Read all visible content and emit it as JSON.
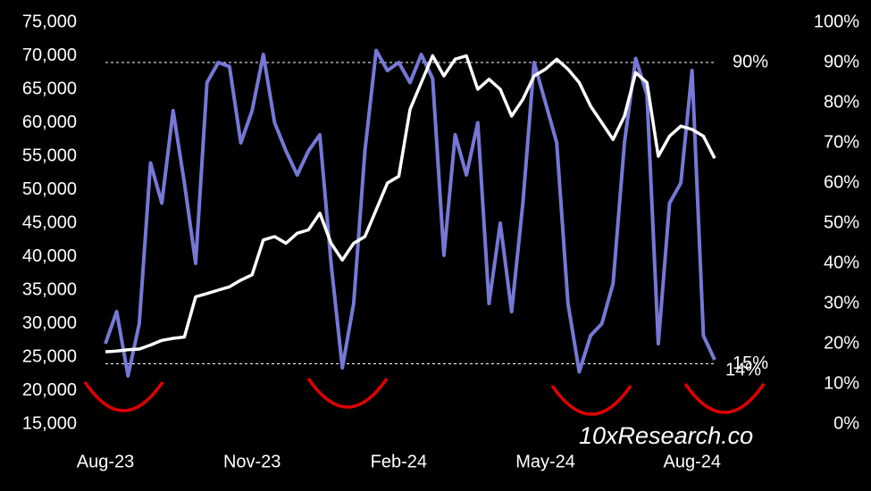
{
  "chart_data": {
    "type": "line",
    "categories": [
      "Aug-23",
      null,
      null,
      null,
      null,
      null,
      null,
      null,
      null,
      null,
      null,
      null,
      null,
      "Nov-23",
      null,
      null,
      null,
      null,
      null,
      null,
      null,
      null,
      null,
      null,
      null,
      null,
      "Feb-24",
      null,
      null,
      null,
      null,
      null,
      null,
      null,
      null,
      null,
      null,
      null,
      null,
      "May-24",
      null,
      null,
      null,
      null,
      null,
      null,
      null,
      null,
      null,
      null,
      null,
      null,
      "Aug-24",
      null,
      null
    ],
    "series": [
      {
        "color": "#ffffff",
        "axis": "y",
        "values": [
          25800,
          25900,
          26100,
          26200,
          26800,
          27500,
          27800,
          28000,
          34000,
          34500,
          35000,
          35500,
          36500,
          37300,
          42500,
          43000,
          42000,
          43500,
          44000,
          46500,
          42000,
          39500,
          42000,
          43000,
          47000,
          51000,
          52000,
          62000,
          66000,
          70000,
          67000,
          69500,
          70000,
          65000,
          66500,
          65000,
          61000,
          63500,
          67000,
          68000,
          69500,
          68000,
          66000,
          62500,
          60000,
          57500,
          61000,
          67500,
          66000,
          55000,
          58000,
          59500,
          59000,
          58000,
          54700
        ]
      },
      {
        "color": "#7678d6",
        "axis": "y2",
        "values": [
          20,
          28,
          12,
          25,
          65,
          55,
          78,
          60,
          40,
          85,
          90,
          89,
          70,
          78,
          92,
          75,
          68,
          62,
          68,
          72,
          40,
          14,
          30,
          68,
          93,
          88,
          90,
          85,
          92,
          86,
          42,
          72,
          62,
          75,
          30,
          50,
          28,
          55,
          90,
          80,
          70,
          30,
          13,
          22,
          25,
          35,
          70,
          91,
          82,
          20,
          55,
          60,
          88,
          22,
          16
        ]
      }
    ],
    "ylim": [
      15000,
      75000
    ],
    "yticks": [
      {
        "value": 15000,
        "label": "15,000"
      },
      {
        "value": 20000,
        "label": "20,000"
      },
      {
        "value": 25000,
        "label": "25,000"
      },
      {
        "value": 30000,
        "label": "30,000"
      },
      {
        "value": 35000,
        "label": "35,000"
      },
      {
        "value": 40000,
        "label": "40,000"
      },
      {
        "value": 45000,
        "label": "45,000"
      },
      {
        "value": 50000,
        "label": "50,000"
      },
      {
        "value": 55000,
        "label": "55,000"
      },
      {
        "value": 60000,
        "label": "60,000"
      },
      {
        "value": 65000,
        "label": "65,000"
      },
      {
        "value": 70000,
        "label": "70,000"
      },
      {
        "value": 75000,
        "label": "75,000"
      }
    ],
    "y2lim": [
      0,
      100
    ],
    "y2ticks": [
      {
        "value": 0,
        "label": "0%"
      },
      {
        "value": 10,
        "label": "10%"
      },
      {
        "value": 20,
        "label": "20%"
      },
      {
        "value": 30,
        "label": "30%"
      },
      {
        "value": 40,
        "label": "40%"
      },
      {
        "value": 50,
        "label": "50%"
      },
      {
        "value": 60,
        "label": "60%"
      },
      {
        "value": 70,
        "label": "70%"
      },
      {
        "value": 80,
        "label": "80%"
      },
      {
        "value": 90,
        "label": "90%"
      },
      {
        "value": 100,
        "label": "100%"
      }
    ],
    "reference_lines": [
      {
        "value": 90,
        "label": "90%"
      },
      {
        "value": 15,
        "label": "15%"
      }
    ],
    "annotation": "14%",
    "watermark": "10xResearch.co"
  }
}
